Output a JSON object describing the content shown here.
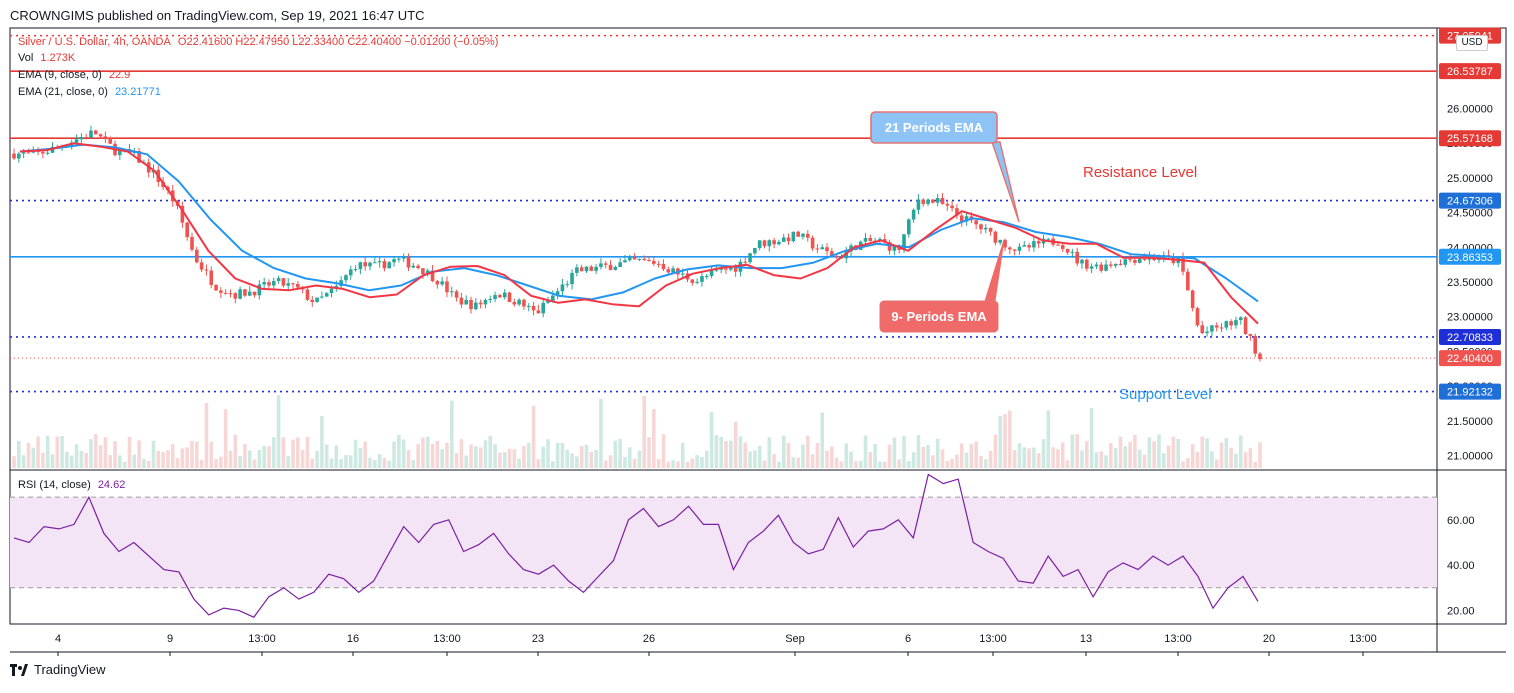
{
  "publisher_line": "CROWNGIMS published on TradingView.com, Sep 19, 2021 16:47 UTC",
  "legend": {
    "symbol": "Silver / U.S. Dollar, 4h, OANDA",
    "ohlc": "O22.41600  H22.47950  L22.33400  C22.40400  −0.01200 (−0.05%)",
    "vol_label": "Vol",
    "vol_value": "1.273K",
    "ema9_label": "EMA (9, close, 0)",
    "ema9_value": "22.9",
    "ema21_label": "EMA (21, close, 0)",
    "ema21_value": "23.21771",
    "rsi_label": "RSI (14, close)",
    "rsi_value": "24.62"
  },
  "currency_badge": "USD",
  "branding": "TradingView",
  "colors": {
    "up": "#26a69a",
    "down": "#ef5350",
    "ema9": "#f23645",
    "ema21": "#2196f3",
    "rsi": "#7b1fa2",
    "rsi_band": "#f3e5f5",
    "level_red": "#e53935",
    "level_blue": "#1e2fd8"
  },
  "chart_data": {
    "type": "candlestick",
    "price_axis": {
      "ylim": [
        20.82,
        27.16
      ],
      "ticks": [
        "26.00000",
        "25.50000",
        "25.00000",
        "24.50000",
        "24.00000",
        "23.50000",
        "23.00000",
        "22.50000",
        "22.00000",
        "21.50000",
        "21.00000"
      ]
    },
    "x_ticks": [
      "4",
      "9",
      "13:00",
      "16",
      "13:00",
      "23",
      "26",
      "Sep",
      "6",
      "13:00",
      "13",
      "13:00",
      "20",
      "13:00"
    ],
    "price_labels": [
      {
        "value": "27.05",
        "text": "27.05041",
        "color": "#e53935"
      },
      {
        "value": "26.53787",
        "text": "26.53787",
        "color": "#e53935"
      },
      {
        "value": "25.57168",
        "text": "25.57168",
        "color": "#e53935"
      },
      {
        "value": "24.67306",
        "text": "24.67306",
        "color": "#1e6fd8"
      },
      {
        "value": "23.86353",
        "text": "23.86353",
        "color": "#2196f3"
      },
      {
        "value": "22.70833",
        "text": "22.70833",
        "color": "#1e2fd8"
      },
      {
        "value": "22.40400",
        "text": "22.40400",
        "color": "#ef5350"
      },
      {
        "value": "21.92132",
        "text": "21.92132",
        "color": "#1e6fd8"
      }
    ],
    "levels": [
      {
        "price": 27.05,
        "style": "dotted",
        "color": "#e53935"
      },
      {
        "price": 26.53787,
        "style": "solid",
        "color": "#e53935"
      },
      {
        "price": 25.57168,
        "style": "solid",
        "color": "#e53935"
      },
      {
        "price": 24.67306,
        "style": "dotted",
        "color": "#1e2fd8"
      },
      {
        "price": 23.86353,
        "style": "solid",
        "color": "#2196f3"
      },
      {
        "price": 22.70833,
        "style": "dotted",
        "color": "#1e2fd8"
      },
      {
        "price": 22.404,
        "style": "dotted-thin",
        "color": "#ef5350"
      },
      {
        "price": 21.92132,
        "style": "dotted",
        "color": "#1e2fd8"
      }
    ],
    "annotations": [
      {
        "text": "21 Periods EMA",
        "style": "callout-blue"
      },
      {
        "text": "9- Periods EMA",
        "style": "callout-red"
      },
      {
        "text": "Resistance Level",
        "style": "text-red"
      },
      {
        "text": "Support Level",
        "style": "text-blue"
      }
    ],
    "price_path": [
      25.35,
      25.33,
      25.42,
      25.55,
      25.66,
      25.4,
      25.32,
      25.05,
      24.65,
      23.85,
      23.45,
      23.32,
      23.38,
      23.5,
      23.42,
      23.2,
      23.4,
      23.75,
      23.72,
      23.82,
      23.74,
      23.55,
      23.25,
      23.15,
      23.35,
      23.22,
      23.05,
      23.35,
      23.65,
      23.7,
      23.76,
      23.8,
      23.78,
      23.62,
      23.52,
      23.65,
      23.72,
      24.05,
      24.1,
      24.18,
      23.98,
      23.85,
      24.05,
      24.1,
      23.95,
      24.7,
      24.65,
      24.45,
      24.3,
      24.1,
      23.95,
      24.05,
      24.1,
      23.78,
      23.72,
      23.8,
      23.85,
      23.85,
      23.8,
      22.75,
      22.85,
      22.95,
      22.4
    ],
    "ema9": [
      25.38,
      25.4,
      25.5,
      25.45,
      25.38,
      25.1,
      24.55,
      23.95,
      23.55,
      23.4,
      23.38,
      23.45,
      23.4,
      23.28,
      23.32,
      23.6,
      23.72,
      23.73,
      23.6,
      23.3,
      23.2,
      23.25,
      23.18,
      23.15,
      23.45,
      23.62,
      23.7,
      23.75,
      23.6,
      23.55,
      23.7,
      24.0,
      24.1,
      23.95,
      24.25,
      24.52,
      24.4,
      24.28,
      24.1,
      24.05,
      24.05,
      23.85,
      23.85,
      23.82,
      23.78,
      23.28,
      22.9
    ],
    "ema21": [
      25.38,
      25.42,
      25.48,
      25.44,
      25.34,
      24.95,
      24.4,
      23.95,
      23.7,
      23.55,
      23.48,
      23.38,
      23.45,
      23.65,
      23.7,
      23.6,
      23.45,
      23.3,
      23.25,
      23.35,
      23.55,
      23.68,
      23.74,
      23.7,
      23.7,
      23.78,
      23.95,
      24.05,
      24.0,
      24.25,
      24.42,
      24.36,
      24.22,
      24.15,
      24.05,
      23.9,
      23.87,
      23.84,
      23.55,
      23.22
    ],
    "volume_scale": "relative",
    "rsi": {
      "ylim": [
        14,
        82
      ],
      "ticks": [
        "60.00",
        "40.00",
        "20.00"
      ],
      "bands": [
        70,
        30
      ],
      "values": [
        52,
        50,
        57,
        56,
        58,
        70,
        54,
        46,
        50,
        44,
        38,
        37,
        25,
        18,
        21,
        20,
        17,
        26,
        30,
        25,
        28,
        36,
        34,
        28,
        33,
        45,
        57,
        50,
        58,
        60,
        46,
        49,
        54,
        45,
        38,
        36,
        40,
        33,
        28,
        35,
        42,
        60,
        65,
        57,
        60,
        66,
        58,
        58,
        38,
        50,
        55,
        62,
        50,
        45,
        47,
        61,
        48,
        55,
        56,
        60,
        52,
        80,
        76,
        78,
        50,
        46,
        43,
        33,
        32,
        44,
        35,
        38,
        26,
        37,
        41,
        38,
        44,
        40,
        44,
        35,
        21,
        30,
        35,
        24
      ]
    }
  }
}
